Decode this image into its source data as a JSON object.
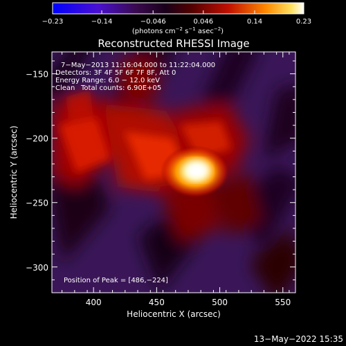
{
  "chart_data": {
    "type": "heatmap",
    "title": "Reconstructed RHESSI Image",
    "xlabel": "Heliocentric X (arcsec)",
    "ylabel": "Heliocentric Y (arcsec)",
    "xlim": [
      367,
      560
    ],
    "ylim": [
      -320,
      -133
    ],
    "x_ticks": [
      400,
      450,
      500,
      550
    ],
    "x_tick_labels": [
      "400",
      "450",
      "500",
      "550"
    ],
    "y_ticks": [
      -150,
      -200,
      -250,
      -300
    ],
    "y_tick_labels": [
      "−150",
      "−200",
      "−250",
      "−300"
    ],
    "colorbar": {
      "range": [
        -0.23,
        0.23
      ],
      "ticks": [
        -0.23,
        -0.14,
        -0.046,
        0.046,
        0.14,
        0.23
      ],
      "tick_labels": [
        "−0.23",
        "−0.14",
        "−0.046",
        "0.046",
        "0.14",
        "0.23"
      ],
      "colors": [
        "#0000ff",
        "#6a00cc",
        "#2a002a",
        "#7a0000",
        "#ff3000",
        "#ffe060",
        "#ffffff"
      ],
      "units_line": "(photons cm",
      "units_exp1": "−2",
      "units_mid": " s",
      "units_exp2": "−1",
      "units_mid2": " asec",
      "units_exp3": "−2",
      "units_end": ")"
    },
    "peak": {
      "x": 486,
      "y": -224,
      "value": 0.23
    }
  },
  "annotations": {
    "time_range": "7−May−2013 11:16:04.000 to 11:22:04.000",
    "detectors": "Detectors: 3F 4F 5F 6F 7F 8F, Att 0",
    "energy": "Energy Range: 6.0 − 12.0 keV",
    "clean_label": "Clean",
    "total_counts": "Total counts: 6.90E+05",
    "peak_position": "Position of Peak = [486,−224]"
  },
  "footer": {
    "timestamp": "13−May−2022 15:35"
  }
}
